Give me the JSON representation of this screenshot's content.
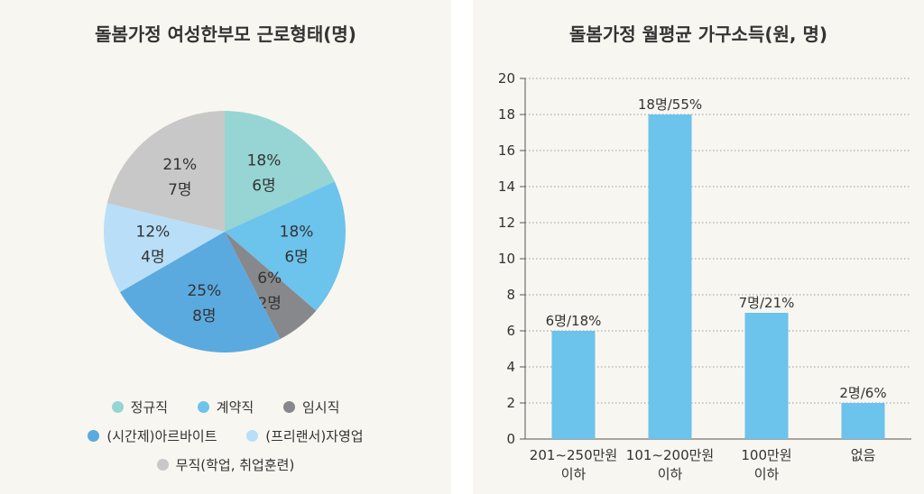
{
  "chart_data": [
    {
      "type": "pie",
      "title": "돌봄가정 여성한부모 근로형태(명)",
      "slices": [
        {
          "name": "정규직",
          "percent": "18%",
          "count": "6명",
          "value": 6,
          "color": "#96d5d3"
        },
        {
          "name": "계약직",
          "percent": "18%",
          "count": "6명",
          "value": 6,
          "color": "#6cc3ec"
        },
        {
          "name": "임시직",
          "percent": "6%",
          "count": "2명",
          "value": 2,
          "color": "#87888b"
        },
        {
          "name": "(시간제)아르바이트",
          "percent": "25%",
          "count": "8명",
          "value": 8,
          "color": "#5aaae0"
        },
        {
          "name": "(프리랜서)자영업",
          "percent": "12%",
          "count": "4명",
          "value": 4,
          "color": "#b8dff7"
        },
        {
          "name": "무직(학업, 취업훈련)",
          "percent": "21%",
          "count": "7명",
          "value": 7,
          "color": "#c8c8c8"
        }
      ],
      "legend_placement": "bottom"
    },
    {
      "type": "bar",
      "title": "돌봄가정 월평균 가구소득(원, 명)",
      "categories": [
        [
          "201∼250만원",
          "이하"
        ],
        [
          "101∼200만원",
          "이하"
        ],
        [
          "100만원",
          "이하"
        ],
        [
          "없음"
        ]
      ],
      "values": [
        6,
        18,
        7,
        2
      ],
      "data_labels": [
        "6명/18%",
        "18명/55%",
        "7명/21%",
        "2명/6%"
      ],
      "ylim": [
        0,
        20
      ],
      "yticks": [
        "0",
        "2",
        "4",
        "6",
        "8",
        "10",
        "12",
        "14",
        "16",
        "18",
        "20"
      ],
      "grid": "horizontal dotted",
      "bar_color": "#6cc3ec"
    }
  ]
}
